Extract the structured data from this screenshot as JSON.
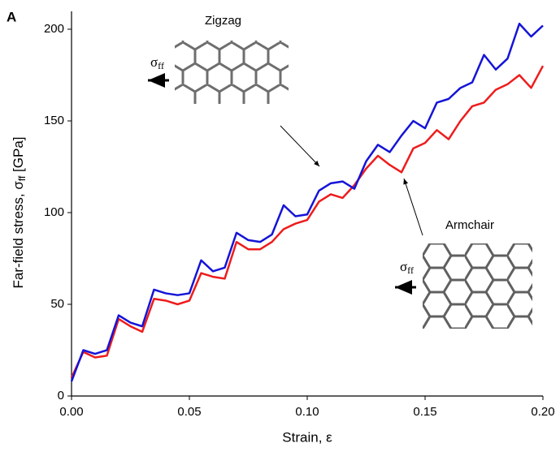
{
  "chart_data": {
    "type": "line",
    "xlabel": [
      "Strain, ε"
    ],
    "ylabel": [
      "Far-field stress, σ",
      "ff",
      " [GPa]"
    ],
    "annotations": {
      "panel": "A",
      "top": "Zigzag",
      "bottom": "Armchair",
      "sigma_top": [
        "σ",
        "ff"
      ],
      "sigma_bottom": [
        "σ",
        "ff"
      ]
    },
    "x": [
      0,
      0.005,
      0.01,
      0.015,
      0.02,
      0.025,
      0.03,
      0.035,
      0.04,
      0.045,
      0.05,
      0.055,
      0.06,
      0.065,
      0.07,
      0.075,
      0.08,
      0.085,
      0.09,
      0.095,
      0.1,
      0.105,
      0.11,
      0.115,
      0.12,
      0.125,
      0.13,
      0.135,
      0.14,
      0.145,
      0.15,
      0.155,
      0.16,
      0.165,
      0.17,
      0.175,
      0.18,
      0.185,
      0.19,
      0.195,
      0.2
    ],
    "series": [
      {
        "color": "#ee1c1c",
        "values": [
          10,
          24,
          21,
          22,
          42,
          38,
          35,
          53,
          52,
          50,
          52,
          67,
          65,
          64,
          84,
          80,
          80,
          84,
          91,
          94,
          96,
          106,
          110,
          108,
          115,
          124,
          131,
          126,
          122,
          135,
          138,
          145,
          140,
          150,
          158,
          160,
          167,
          170,
          175,
          168,
          180
        ]
      },
      {
        "color": "#1414d8",
        "values": [
          8,
          25,
          23,
          25,
          44,
          40,
          38,
          58,
          56,
          55,
          56,
          74,
          68,
          70,
          89,
          85,
          84,
          88,
          104,
          98,
          99,
          112,
          116,
          117,
          113,
          128,
          137,
          133,
          142,
          150,
          146,
          160,
          162,
          168,
          171,
          186,
          178,
          184,
          203,
          196,
          202
        ]
      }
    ],
    "xlim": [
      0,
      0.2
    ],
    "xticks": [
      {
        "value": 0,
        "label": "0.00"
      },
      {
        "value": 0.05,
        "label": "0.05"
      },
      {
        "value": 0.1,
        "label": "0.10"
      },
      {
        "value": 0.15,
        "label": "0.15"
      },
      {
        "value": 0.2,
        "label": "0.20"
      }
    ],
    "ylim": [
      0,
      200
    ],
    "yticks": [
      0,
      50,
      100,
      150,
      200
    ],
    "grid": false
  }
}
